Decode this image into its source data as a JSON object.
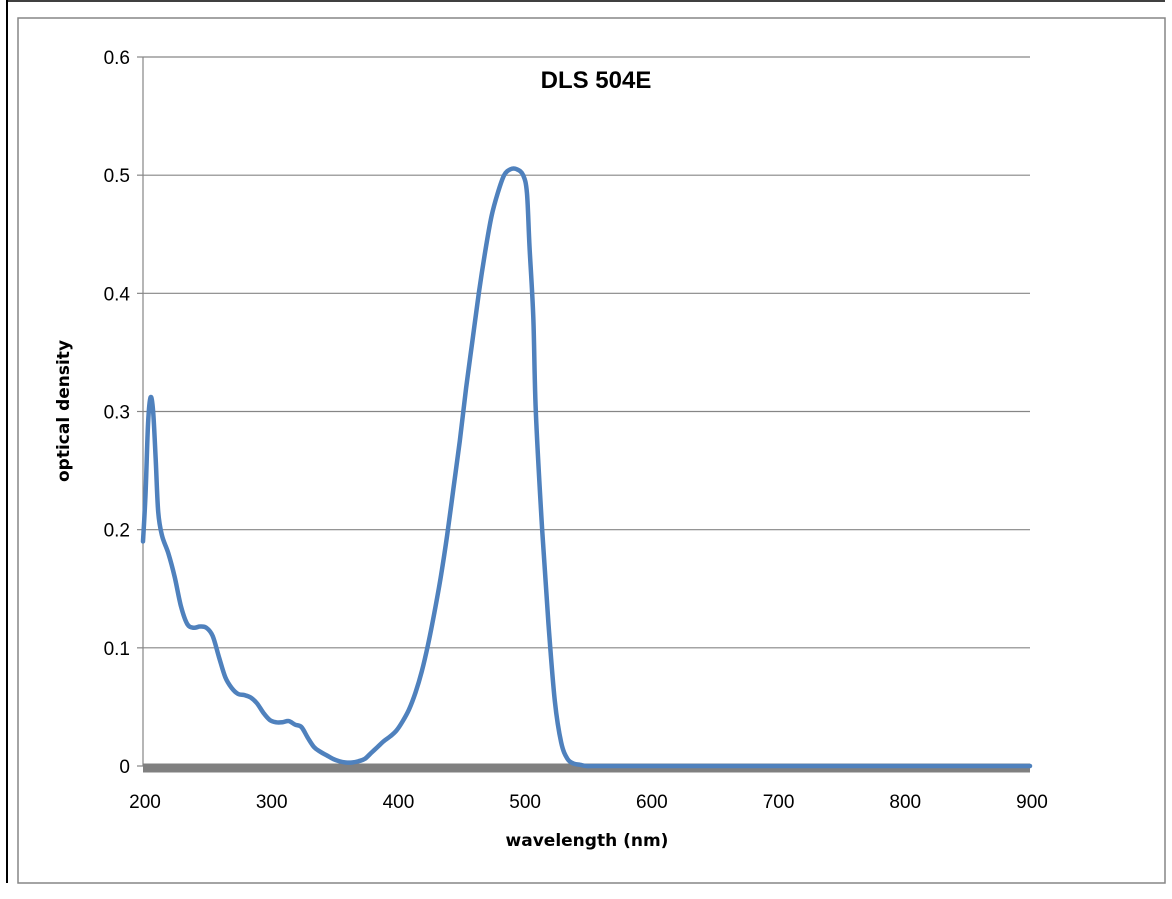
{
  "chart_data": {
    "type": "line",
    "title": "DLS 504E",
    "xlabel": "wavelength (nm)",
    "ylabel": "optical density",
    "xlim": [
      200,
      900
    ],
    "ylim": [
      0,
      0.6
    ],
    "x_ticks": [
      "200",
      "300",
      "400",
      "500",
      "600",
      "700",
      "800",
      "900"
    ],
    "y_ticks": [
      "0",
      "0.1",
      "0.2",
      "0.3",
      "0.4",
      "0.5",
      "0.6"
    ],
    "grid": "horizontal",
    "legend": "none",
    "line_color": "#4F81BD",
    "baseline_color": "#808080",
    "series": [
      {
        "x": [
          200,
          202,
          204,
          206,
          208,
          210,
          212,
          215,
          220,
          225,
          230,
          235,
          240,
          245,
          250,
          255,
          260,
          265,
          270,
          275,
          280,
          285,
          290,
          295,
          300,
          305,
          310,
          315,
          320,
          325,
          330,
          335,
          340,
          345,
          350,
          355,
          360,
          365,
          370,
          375,
          380,
          385,
          390,
          395,
          400,
          405,
          410,
          415,
          420,
          425,
          430,
          435,
          440,
          445,
          450,
          455,
          460,
          465,
          470,
          475,
          480,
          485,
          490,
          495,
          500,
          503,
          505,
          508,
          510,
          515,
          520,
          525,
          530,
          535,
          540,
          545,
          550,
          555,
          560,
          565,
          570,
          575,
          580,
          585,
          590,
          600,
          650,
          700,
          750,
          800,
          850,
          900
        ],
        "y": [
          0.19,
          0.23,
          0.29,
          0.312,
          0.3,
          0.26,
          0.215,
          0.195,
          0.18,
          0.16,
          0.135,
          0.12,
          0.117,
          0.118,
          0.117,
          0.11,
          0.092,
          0.075,
          0.066,
          0.061,
          0.06,
          0.058,
          0.053,
          0.045,
          0.039,
          0.037,
          0.037,
          0.038,
          0.035,
          0.033,
          0.024,
          0.016,
          0.012,
          0.009,
          0.006,
          0.004,
          0.003,
          0.003,
          0.004,
          0.006,
          0.011,
          0.016,
          0.021,
          0.025,
          0.03,
          0.038,
          0.048,
          0.062,
          0.08,
          0.103,
          0.13,
          0.16,
          0.195,
          0.235,
          0.275,
          0.32,
          0.36,
          0.4,
          0.435,
          0.465,
          0.485,
          0.5,
          0.505,
          0.505,
          0.5,
          0.485,
          0.44,
          0.38,
          0.3,
          0.2,
          0.12,
          0.055,
          0.02,
          0.006,
          0.002,
          0.001,
          0,
          0,
          0,
          0,
          0,
          0,
          0,
          0,
          0,
          0,
          0,
          0,
          0,
          0,
          0,
          0
        ]
      }
    ]
  }
}
